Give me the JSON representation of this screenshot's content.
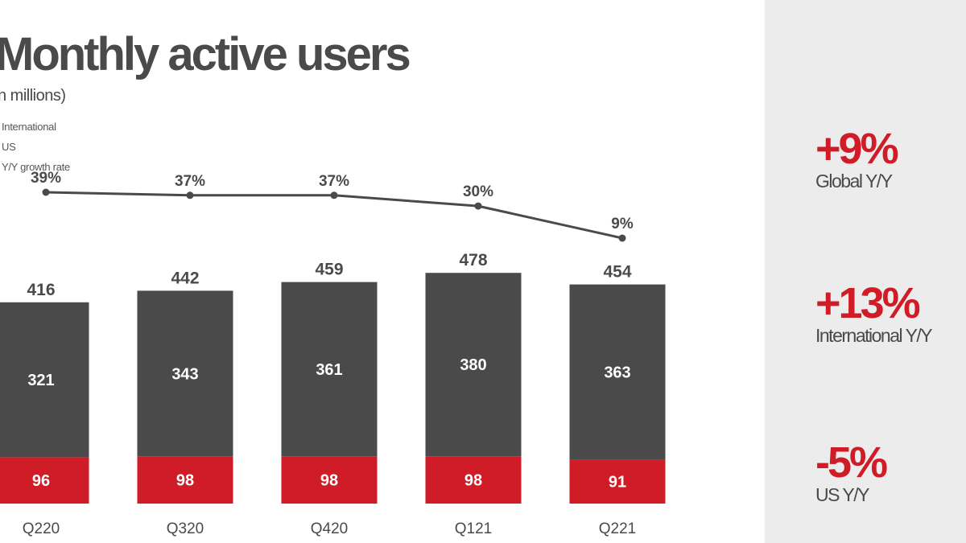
{
  "header": {
    "title": "Monthly active users",
    "subtitle": "n millions)"
  },
  "legend": {
    "international": "International",
    "us": "US",
    "growth": "Y/Y growth rate"
  },
  "colors": {
    "international": "#4a4a4a",
    "us": "#d01c27",
    "line": "#4a4a4a",
    "panel": "#ececec"
  },
  "chart_data": {
    "type": "bar",
    "stacked": true,
    "title": "Monthly active users",
    "subtitle": "n millions)",
    "categories": [
      "Q220",
      "Q320",
      "Q420",
      "Q121",
      "Q221"
    ],
    "series": [
      {
        "name": "US",
        "values": [
          96,
          98,
          98,
          98,
          91
        ]
      },
      {
        "name": "International",
        "values": [
          321,
          343,
          361,
          380,
          363
        ]
      }
    ],
    "totals": [
      416,
      442,
      459,
      478,
      454
    ],
    "growth_series": {
      "name": "Y/Y growth rate",
      "values": [
        39,
        37,
        37,
        30,
        9
      ],
      "labels": [
        "39%",
        "37%",
        "37%",
        "30%",
        "9%"
      ]
    },
    "ylim": [
      0,
      500
    ],
    "legend": [
      "International",
      "US",
      "Y/Y growth rate"
    ]
  },
  "kpis": [
    {
      "value": "+9%",
      "label": "Global Y/Y"
    },
    {
      "value": "+13%",
      "label": "International Y/Y"
    },
    {
      "value": "-5%",
      "label": "US Y/Y"
    }
  ]
}
